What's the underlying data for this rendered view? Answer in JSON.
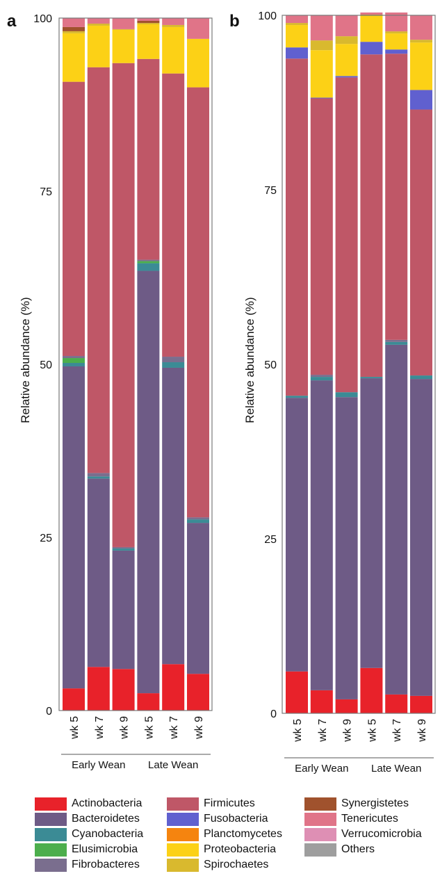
{
  "chart_data": [
    {
      "type": "bar",
      "stacked": true,
      "panel_label": "a",
      "ylabel": "Relative abundance (%)",
      "ylim": [
        0,
        100
      ],
      "yticks": [
        0,
        25,
        50,
        75,
        100
      ],
      "categories": [
        "wk 5",
        "wk 7",
        "wk 9",
        "wk 5",
        "wk 7",
        "wk 9"
      ],
      "groups": [
        {
          "label": "Early Wean",
          "categories": [
            "wk 5",
            "wk 7",
            "wk 9"
          ]
        },
        {
          "label": "Late Wean",
          "categories": [
            "wk 5",
            "wk 7",
            "wk 9"
          ]
        }
      ],
      "series": [
        {
          "name": "Actinobacteria",
          "values": [
            3.2,
            6.3,
            6.0,
            2.5,
            6.7,
            5.3
          ]
        },
        {
          "name": "Bacteroidetes",
          "values": [
            46.5,
            27.2,
            17.1,
            61.0,
            42.8,
            21.8
          ]
        },
        {
          "name": "Cyanobacteria",
          "values": [
            0.5,
            0.3,
            0.3,
            1.1,
            0.8,
            0.5
          ]
        },
        {
          "name": "Elusimicrobia",
          "values": [
            0.7,
            0,
            0,
            0.3,
            0,
            0
          ]
        },
        {
          "name": "Fibrobacteres",
          "values": [
            0.3,
            0.5,
            0.2,
            0.2,
            0.8,
            0.3
          ]
        },
        {
          "name": "Firmicutes",
          "values": [
            39.6,
            58.6,
            69.9,
            29.0,
            40.9,
            62.1
          ]
        },
        {
          "name": "Fusobacteria",
          "values": [
            0,
            0,
            0,
            0,
            0,
            0
          ]
        },
        {
          "name": "Planctomycetes",
          "values": [
            0,
            0,
            0,
            0,
            0,
            0
          ]
        },
        {
          "name": "Proteobacteria",
          "values": [
            7.0,
            6.0,
            4.8,
            5.0,
            6.7,
            7.0
          ]
        },
        {
          "name": "Spirochaetes",
          "values": [
            0.3,
            0.3,
            0.1,
            0.2,
            0.3,
            0
          ]
        },
        {
          "name": "Synergistetes",
          "values": [
            0.6,
            0,
            0,
            0.3,
            0,
            0
          ]
        },
        {
          "name": "Tenericutes",
          "values": [
            1.3,
            0.8,
            1.6,
            0.4,
            1.0,
            3.0
          ]
        },
        {
          "name": "Verrucomicrobia",
          "values": [
            0,
            0,
            0,
            0,
            0,
            0
          ]
        },
        {
          "name": "Others",
          "values": [
            0,
            0,
            0,
            0,
            0,
            0
          ]
        }
      ]
    },
    {
      "type": "bar",
      "stacked": true,
      "panel_label": "b",
      "ylabel": "Relative abundance (%)",
      "ylim": [
        0,
        100
      ],
      "yticks": [
        0,
        25,
        50,
        75,
        100
      ],
      "categories": [
        "wk 5",
        "wk 7",
        "wk 9",
        "wk 5",
        "wk 7",
        "wk 9"
      ],
      "groups": [
        {
          "label": "Early Wean",
          "categories": [
            "wk 5",
            "wk 7",
            "wk 9"
          ]
        },
        {
          "label": "Late Wean",
          "categories": [
            "wk 5",
            "wk 7",
            "wk 9"
          ]
        }
      ],
      "series": [
        {
          "name": "Actinobacteria",
          "values": [
            6.0,
            3.3,
            2.0,
            6.5,
            2.7,
            2.5
          ]
        },
        {
          "name": "Bacteroidetes",
          "values": [
            39.2,
            44.4,
            43.3,
            41.5,
            50.1,
            45.4
          ]
        },
        {
          "name": "Cyanobacteria",
          "values": [
            0.3,
            0.5,
            0.7,
            0.2,
            0.4,
            0.5
          ]
        },
        {
          "name": "Elusimicrobia",
          "values": [
            0,
            0,
            0,
            0,
            0,
            0
          ]
        },
        {
          "name": "Fibrobacteres",
          "values": [
            0,
            0.3,
            0,
            0,
            0.3,
            0
          ]
        },
        {
          "name": "Firmicutes",
          "values": [
            48.3,
            39.6,
            45.1,
            46.2,
            41.0,
            38.1
          ]
        },
        {
          "name": "Fusobacteria",
          "values": [
            1.6,
            0.1,
            0.2,
            1.8,
            0.6,
            2.8
          ]
        },
        {
          "name": "Planctomycetes",
          "values": [
            0,
            0,
            0,
            0,
            0,
            0
          ]
        },
        {
          "name": "Proteobacteria",
          "values": [
            3.2,
            6.8,
            4.6,
            3.7,
            2.3,
            6.8
          ]
        },
        {
          "name": "Spirochaetes",
          "values": [
            0.3,
            1.4,
            1.1,
            0.2,
            0.3,
            0.4
          ]
        },
        {
          "name": "Synergistetes",
          "values": [
            0,
            0,
            0,
            0,
            0,
            0
          ]
        },
        {
          "name": "Tenericutes",
          "values": [
            1.1,
            3.6,
            3.0,
            0.3,
            2.7,
            3.5
          ]
        },
        {
          "name": "Verrucomicrobia",
          "values": [
            0,
            0,
            0,
            0,
            0,
            0
          ]
        },
        {
          "name": "Others",
          "values": [
            0,
            0,
            0,
            0,
            0,
            0
          ]
        }
      ]
    }
  ],
  "colors": {
    "Actinobacteria": "#e8222a",
    "Bacteroidetes": "#6e5b86",
    "Cyanobacteria": "#3b8b95",
    "Elusimicrobia": "#4cae4c",
    "Fibrobacteres": "#7a6e8e",
    "Firmicutes": "#bf5767",
    "Fusobacteria": "#6060cf",
    "Planctomycetes": "#f5840f",
    "Proteobacteria": "#fcd116",
    "Spirochaetes": "#d9b92e",
    "Synergistetes": "#a0522d",
    "Tenericutes": "#e07488",
    "Verrucomicrobia": "#de8fb4",
    "Others": "#9e9e9e"
  },
  "legend": {
    "items": [
      {
        "label": "Actinobacteria"
      },
      {
        "label": "Bacteroidetes"
      },
      {
        "label": "Cyanobacteria"
      },
      {
        "label": "Elusimicrobia"
      },
      {
        "label": "Fibrobacteres"
      },
      {
        "label": "Firmicutes"
      },
      {
        "label": "Fusobacteria"
      },
      {
        "label": "Planctomycetes"
      },
      {
        "label": "Proteobacteria"
      },
      {
        "label": "Spirochaetes"
      },
      {
        "label": "Synergistetes"
      },
      {
        "label": "Tenericutes"
      },
      {
        "label": "Verrucomicrobia"
      },
      {
        "label": "Others"
      }
    ]
  }
}
